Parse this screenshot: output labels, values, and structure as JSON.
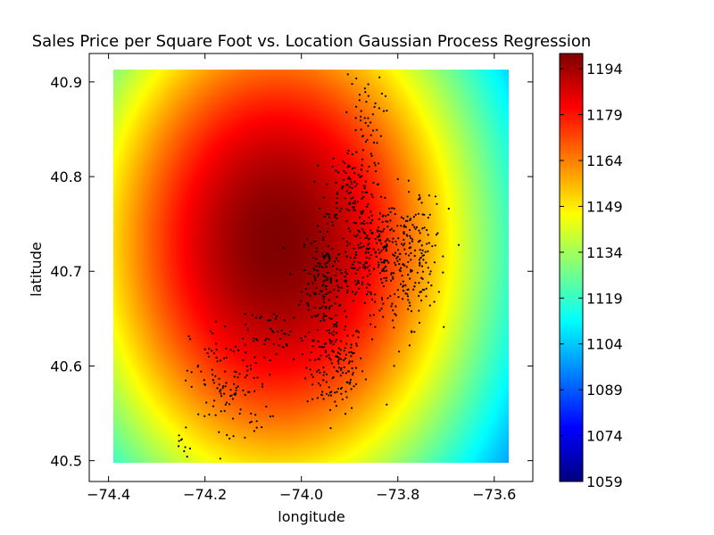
{
  "chart_data": {
    "type": "heatmap",
    "title": "Sales Price per Square Foot vs. Location Gaussian Process Regression",
    "xlabel": "longitude",
    "ylabel": "latitude",
    "xlim": [
      -74.44,
      -73.52
    ],
    "ylim": [
      40.478,
      40.93
    ],
    "x_ticks": [
      {
        "value": -74.4,
        "label": "−74.4"
      },
      {
        "value": -74.2,
        "label": "−74.2"
      },
      {
        "value": -74.0,
        "label": "−74.0"
      },
      {
        "value": -73.8,
        "label": "−73.8"
      },
      {
        "value": -73.6,
        "label": "−73.6"
      }
    ],
    "y_ticks": [
      {
        "value": 40.5,
        "label": "40.5"
      },
      {
        "value": 40.6,
        "label": "40.6"
      },
      {
        "value": 40.7,
        "label": "40.7"
      },
      {
        "value": 40.8,
        "label": "40.8"
      },
      {
        "value": 40.9,
        "label": "40.9"
      }
    ],
    "surface": {
      "x_range": [
        -74.39,
        -73.57
      ],
      "y_range": [
        40.498,
        40.913
      ],
      "peak_lon": -74.05,
      "peak_lat": 40.73,
      "peak_value": 1199,
      "sigma_lon": 0.372,
      "sigma_lat": 0.254
    },
    "colorbar": {
      "colormap": "jet",
      "min": 1059,
      "max": 1199,
      "ticks": [
        "1059",
        "1074",
        "1089",
        "1104",
        "1119",
        "1134",
        "1149",
        "1164",
        "1179",
        "1194"
      ]
    },
    "scatter": {
      "color": "#000000",
      "point_count": 1100,
      "clusters": [
        {
          "lon": -73.93,
          "lat": 40.6,
          "sd_lon": 0.03,
          "sd_lat": 0.025,
          "n": 150
        },
        {
          "lon": -73.95,
          "lat": 40.69,
          "sd_lon": 0.025,
          "sd_lat": 0.03,
          "n": 170
        },
        {
          "lon": -73.86,
          "lat": 40.72,
          "sd_lon": 0.03,
          "sd_lat": 0.03,
          "n": 180
        },
        {
          "lon": -73.8,
          "lat": 40.7,
          "sd_lon": 0.04,
          "sd_lat": 0.035,
          "n": 160
        },
        {
          "lon": -73.9,
          "lat": 40.79,
          "sd_lon": 0.025,
          "sd_lat": 0.02,
          "n": 90
        },
        {
          "lon": -73.87,
          "lat": 40.86,
          "sd_lon": 0.02,
          "sd_lat": 0.025,
          "n": 50
        },
        {
          "lon": -74.15,
          "lat": 40.58,
          "sd_lon": 0.04,
          "sd_lat": 0.035,
          "n": 130
        },
        {
          "lon": -73.76,
          "lat": 40.73,
          "sd_lon": 0.025,
          "sd_lat": 0.03,
          "n": 90
        },
        {
          "lon": -74.05,
          "lat": 40.63,
          "sd_lon": 0.03,
          "sd_lat": 0.015,
          "n": 40
        },
        {
          "lon": -74.24,
          "lat": 40.51,
          "sd_lon": 0.01,
          "sd_lat": 0.008,
          "n": 10
        }
      ]
    }
  }
}
